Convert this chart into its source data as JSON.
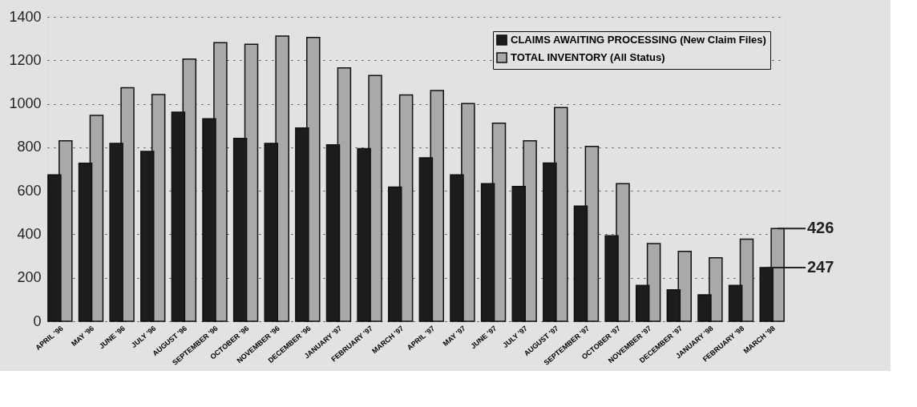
{
  "chart_data": {
    "type": "bar",
    "categories": [
      "APRIL '96",
      "MAY '96",
      "JUNE '96",
      "JULY '96",
      "AUGUST '96",
      "SEPTEMBER '96",
      "OCTOBER '96",
      "NOVEMBER '96",
      "DECEMBER '96",
      "JANUARY '97",
      "FEBRUARY '97",
      "MARCH '97",
      "APRIL '97",
      "MAY '97",
      "JUNE '97",
      "JULY '97",
      "AUGUST '97",
      "SEPTEMBER '97",
      "OCTOBER '97",
      "NOVEMBER '97",
      "DECEMBER '97",
      "JANUARY '98",
      "FEBRUARY '98",
      "MARCH '98"
    ],
    "series": [
      {
        "name": "CLAIMS AWAITING PROCESSING (New Claim Files)",
        "color": "#1e1b1b",
        "values": [
          673,
          727,
          818,
          781,
          962,
          931,
          841,
          818,
          889,
          811,
          794,
          617,
          752,
          673,
          633,
          620,
          728,
          530,
          393,
          165,
          145,
          122,
          165,
          247
        ],
        "value_labels": [
          null,
          null,
          null,
          null,
          null,
          null,
          null,
          null,
          null,
          null,
          null,
          null,
          null,
          null,
          null,
          null,
          null,
          null,
          null,
          null,
          null,
          null,
          null,
          "247"
        ]
      },
      {
        "name": "TOTAL INVENTORY (All Status)",
        "color": "#a9a9a9",
        "values": [
          830,
          947,
          1074,
          1043,
          1206,
          1281,
          1274,
          1312,
          1305,
          1165,
          1130,
          1041,
          1061,
          1001,
          911,
          830,
          983,
          804,
          633,
          357,
          321,
          292,
          378,
          426
        ],
        "value_labels": [
          null,
          null,
          null,
          null,
          null,
          null,
          null,
          null,
          null,
          null,
          null,
          null,
          null,
          null,
          null,
          null,
          null,
          null,
          null,
          null,
          null,
          null,
          null,
          "426"
        ]
      }
    ],
    "ylim": [
      0,
      1400
    ],
    "yticks": [
      0,
      200,
      400,
      600,
      800,
      1000,
      1200,
      1400
    ],
    "grid": "y",
    "legend": "top right"
  }
}
